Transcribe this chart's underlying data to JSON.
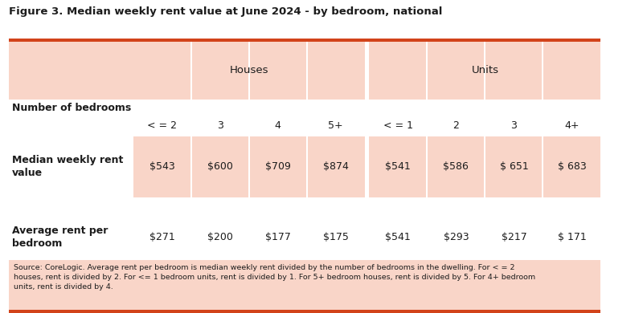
{
  "title": "Figure 3. Median weekly rent value at June 2024 - by bedroom, national",
  "subheader_cols": [
    "< = 2",
    "3",
    "4",
    "5+",
    "< = 1",
    "2",
    "3",
    "4+"
  ],
  "row1_label": "Median weekly rent\nvalue",
  "row1_values": [
    "$543",
    "$600",
    "$709",
    "$874",
    "$541",
    "$586",
    "$ 651",
    "$ 683"
  ],
  "row2_label": "Average rent per\nbedroom",
  "row2_values": [
    "$271",
    "$200",
    "$177",
    "$175",
    "$541",
    "$293",
    "$217",
    "$ 171"
  ],
  "footnote_lines": [
    "Source: CoreLogic. Average rent per bedroom is median weekly rent divided by the number of bedrooms in the dwelling. For < = 2",
    "houses, rent is divided by 2. For <= 1 bedroom units, rent is divided by 1. For 5+ bedroom houses, rent is divided by 5. For 4+ bedroom",
    "units, rent is divided by 4."
  ],
  "bg_color": "#FFFFFF",
  "salmon": "#F9D5C8",
  "orange_border": "#D2431A",
  "text_dark": "#1C1C1C",
  "col_divider": "#FFFFFF",
  "num_label_cols": 1,
  "num_data_cols": 8
}
